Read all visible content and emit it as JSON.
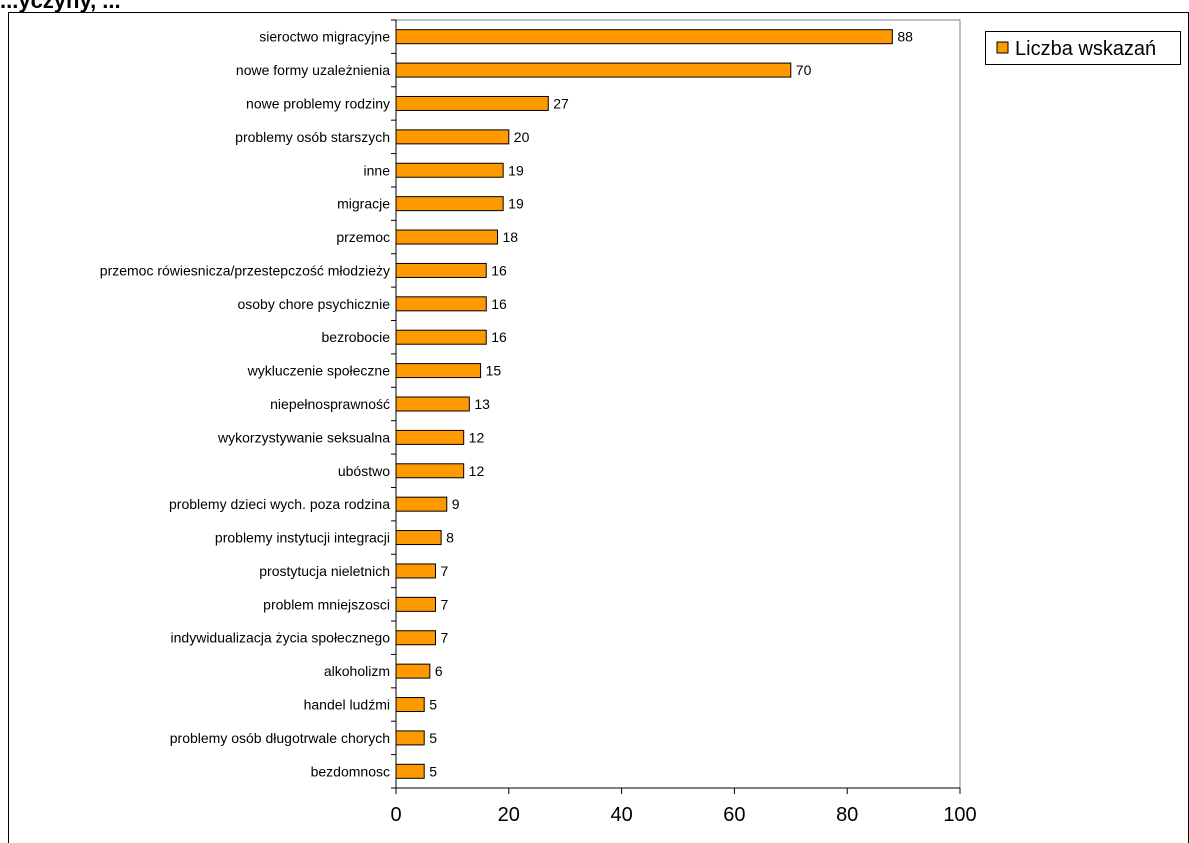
{
  "page": {
    "heading": "...yczyny, ..."
  },
  "chart_data": {
    "type": "bar",
    "orientation": "horizontal",
    "title": "",
    "xlabel": "",
    "ylabel": "",
    "xlim": [
      0,
      100
    ],
    "xticks": [
      0,
      20,
      40,
      60,
      80,
      100
    ],
    "grid": false,
    "legend_position": "top-right",
    "bar_color": "#FF9900",
    "bar_edge_color": "#000000",
    "categories": [
      "sieroctwo migracyjne",
      "nowe formy uzależnienia",
      "nowe problemy rodziny",
      "problemy osób starszych",
      "inne",
      "migracje",
      "przemoc",
      "przemoc rówiesnicza/przestepczość młodzieży",
      "osoby chore psychicznie",
      "bezrobocie",
      "wykluczenie społeczne",
      "niepełnosprawność",
      "wykorzystywanie seksualna",
      "ubóstwo",
      "problemy dzieci wych. poza rodzina",
      "problemy instytucji integracji",
      "prostytucja nieletnich",
      "problem mniejszosci",
      "indywidualizacja życia społecznego",
      "alkoholizm",
      "handel ludźmi",
      "problemy osób długotrwale chorych",
      "bezdomnosc"
    ],
    "series": [
      {
        "name": "Liczba wskazań",
        "values": [
          88,
          70,
          27,
          20,
          19,
          19,
          18,
          16,
          16,
          16,
          15,
          13,
          12,
          12,
          9,
          8,
          7,
          7,
          7,
          6,
          5,
          5,
          5
        ]
      }
    ]
  }
}
